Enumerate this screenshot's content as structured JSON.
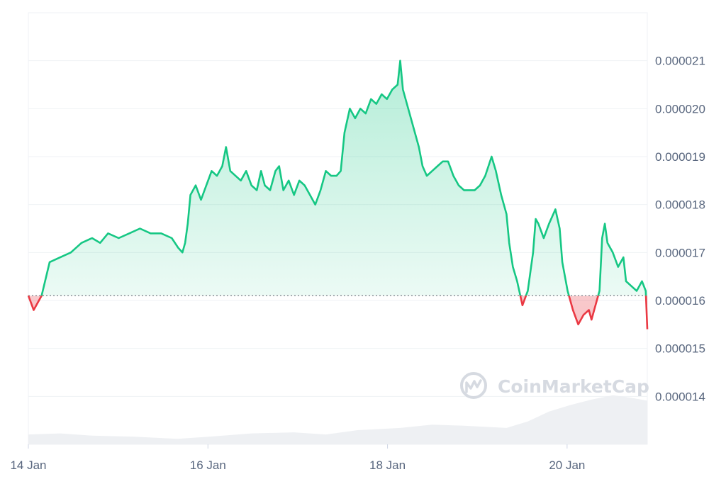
{
  "watermark": {
    "text": "CoinMarketCap"
  },
  "colors": {
    "up_line": "#16c784",
    "down_line": "#ea3943",
    "up_fill": "#16c784",
    "down_fill": "#ea3943",
    "grid": "#eff2f5",
    "axis_text": "#58667e",
    "volume": "#eef0f3",
    "baseline": "#7a7f87"
  },
  "chart_data": {
    "type": "line",
    "series": [
      {
        "values": [
          [
            0.0,
            1.61e-05
          ],
          [
            0.1,
            1.58e-05
          ],
          [
            0.25,
            1.61e-05
          ],
          [
            0.4,
            1.68e-05
          ],
          [
            0.6,
            1.69e-05
          ],
          [
            0.8,
            1.7e-05
          ],
          [
            1.0,
            1.72e-05
          ],
          [
            1.2,
            1.73e-05
          ],
          [
            1.35,
            1.72e-05
          ],
          [
            1.5,
            1.74e-05
          ],
          [
            1.7,
            1.73e-05
          ],
          [
            1.9,
            1.74e-05
          ],
          [
            2.1,
            1.75e-05
          ],
          [
            2.3,
            1.74e-05
          ],
          [
            2.5,
            1.74e-05
          ],
          [
            2.7,
            1.73e-05
          ],
          [
            2.82,
            1.71e-05
          ],
          [
            2.9,
            1.7e-05
          ],
          [
            2.95,
            1.72e-05
          ],
          [
            3.0,
            1.76e-05
          ],
          [
            3.05,
            1.82e-05
          ],
          [
            3.15,
            1.84e-05
          ],
          [
            3.25,
            1.81e-05
          ],
          [
            3.35,
            1.84e-05
          ],
          [
            3.45,
            1.87e-05
          ],
          [
            3.55,
            1.86e-05
          ],
          [
            3.65,
            1.88e-05
          ],
          [
            3.72,
            1.92e-05
          ],
          [
            3.8,
            1.87e-05
          ],
          [
            3.9,
            1.86e-05
          ],
          [
            4.0,
            1.85e-05
          ],
          [
            4.1,
            1.87e-05
          ],
          [
            4.2,
            1.84e-05
          ],
          [
            4.3,
            1.83e-05
          ],
          [
            4.38,
            1.87e-05
          ],
          [
            4.45,
            1.84e-05
          ],
          [
            4.55,
            1.83e-05
          ],
          [
            4.65,
            1.87e-05
          ],
          [
            4.72,
            1.88e-05
          ],
          [
            4.8,
            1.83e-05
          ],
          [
            4.9,
            1.85e-05
          ],
          [
            5.0,
            1.82e-05
          ],
          [
            5.1,
            1.85e-05
          ],
          [
            5.2,
            1.84e-05
          ],
          [
            5.3,
            1.82e-05
          ],
          [
            5.4,
            1.8e-05
          ],
          [
            5.5,
            1.83e-05
          ],
          [
            5.6,
            1.87e-05
          ],
          [
            5.7,
            1.86e-05
          ],
          [
            5.8,
            1.86e-05
          ],
          [
            5.88,
            1.87e-05
          ],
          [
            5.95,
            1.95e-05
          ],
          [
            6.05,
            2e-05
          ],
          [
            6.15,
            1.98e-05
          ],
          [
            6.25,
            2e-05
          ],
          [
            6.35,
            1.99e-05
          ],
          [
            6.45,
            2.02e-05
          ],
          [
            6.55,
            2.01e-05
          ],
          [
            6.65,
            2.03e-05
          ],
          [
            6.75,
            2.02e-05
          ],
          [
            6.85,
            2.04e-05
          ],
          [
            6.95,
            2.05e-05
          ],
          [
            7.0,
            2.1e-05
          ],
          [
            7.05,
            2.04e-05
          ],
          [
            7.15,
            2e-05
          ],
          [
            7.25,
            1.96e-05
          ],
          [
            7.35,
            1.92e-05
          ],
          [
            7.42,
            1.88e-05
          ],
          [
            7.5,
            1.86e-05
          ],
          [
            7.6,
            1.87e-05
          ],
          [
            7.7,
            1.88e-05
          ],
          [
            7.8,
            1.89e-05
          ],
          [
            7.9,
            1.89e-05
          ],
          [
            8.0,
            1.86e-05
          ],
          [
            8.1,
            1.84e-05
          ],
          [
            8.2,
            1.83e-05
          ],
          [
            8.3,
            1.83e-05
          ],
          [
            8.4,
            1.83e-05
          ],
          [
            8.5,
            1.84e-05
          ],
          [
            8.6,
            1.86e-05
          ],
          [
            8.72,
            1.9e-05
          ],
          [
            8.8,
            1.87e-05
          ],
          [
            8.9,
            1.82e-05
          ],
          [
            9.0,
            1.78e-05
          ],
          [
            9.05,
            1.72e-05
          ],
          [
            9.12,
            1.67e-05
          ],
          [
            9.2,
            1.64e-05
          ],
          [
            9.3,
            1.59e-05
          ],
          [
            9.4,
            1.62e-05
          ],
          [
            9.5,
            1.7e-05
          ],
          [
            9.55,
            1.77e-05
          ],
          [
            9.6,
            1.76e-05
          ],
          [
            9.7,
            1.73e-05
          ],
          [
            9.8,
            1.76e-05
          ],
          [
            9.92,
            1.79e-05
          ],
          [
            10.0,
            1.75e-05
          ],
          [
            10.05,
            1.68e-05
          ],
          [
            10.15,
            1.62e-05
          ],
          [
            10.25,
            1.58e-05
          ],
          [
            10.35,
            1.55e-05
          ],
          [
            10.45,
            1.57e-05
          ],
          [
            10.55,
            1.58e-05
          ],
          [
            10.6,
            1.56e-05
          ],
          [
            10.7,
            1.6e-05
          ],
          [
            10.75,
            1.62e-05
          ],
          [
            10.8,
            1.73e-05
          ],
          [
            10.85,
            1.76e-05
          ],
          [
            10.9,
            1.72e-05
          ],
          [
            11.0,
            1.7e-05
          ],
          [
            11.1,
            1.67e-05
          ],
          [
            11.2,
            1.69e-05
          ],
          [
            11.25,
            1.64e-05
          ],
          [
            11.35,
            1.63e-05
          ],
          [
            11.45,
            1.62e-05
          ],
          [
            11.55,
            1.64e-05
          ],
          [
            11.62,
            1.62e-05
          ],
          [
            11.65,
            1.54e-05
          ]
        ]
      }
    ],
    "baseline": 1.61e-05,
    "x_range": [
      0.0,
      11.65
    ],
    "xticks": [
      {
        "x": 0.0,
        "label": "14 Jan"
      },
      {
        "x": 3.38,
        "label": "16 Jan"
      },
      {
        "x": 6.76,
        "label": "18 Jan"
      },
      {
        "x": 10.14,
        "label": "20 Jan"
      }
    ],
    "yticks": [
      {
        "value": 2.1e-05,
        "label": "0.000021"
      },
      {
        "value": 2e-05,
        "label": "0.000020"
      },
      {
        "value": 1.9e-05,
        "label": "0.000019"
      },
      {
        "value": 1.8e-05,
        "label": "0.000018"
      },
      {
        "value": 1.7e-05,
        "label": "0.000017"
      },
      {
        "value": 1.6e-05,
        "label": "0.000016"
      },
      {
        "value": 1.5e-05,
        "label": "0.000015"
      },
      {
        "value": 1.4e-05,
        "label": "0.000014"
      }
    ],
    "ylim": [
      1.3e-05,
      2.2e-05
    ],
    "grid": true,
    "y_axis_position": "right",
    "volume": [
      [
        0.0,
        0.18
      ],
      [
        0.6,
        0.2
      ],
      [
        1.2,
        0.16
      ],
      [
        2.0,
        0.14
      ],
      [
        2.8,
        0.1
      ],
      [
        3.4,
        0.14
      ],
      [
        4.2,
        0.2
      ],
      [
        5.0,
        0.22
      ],
      [
        5.6,
        0.18
      ],
      [
        6.2,
        0.26
      ],
      [
        7.0,
        0.3
      ],
      [
        7.6,
        0.36
      ],
      [
        8.2,
        0.34
      ],
      [
        9.0,
        0.3
      ],
      [
        9.4,
        0.42
      ],
      [
        9.8,
        0.6
      ],
      [
        10.2,
        0.72
      ],
      [
        10.6,
        0.82
      ],
      [
        11.0,
        0.9
      ],
      [
        11.3,
        0.86
      ],
      [
        11.65,
        0.8
      ]
    ]
  }
}
